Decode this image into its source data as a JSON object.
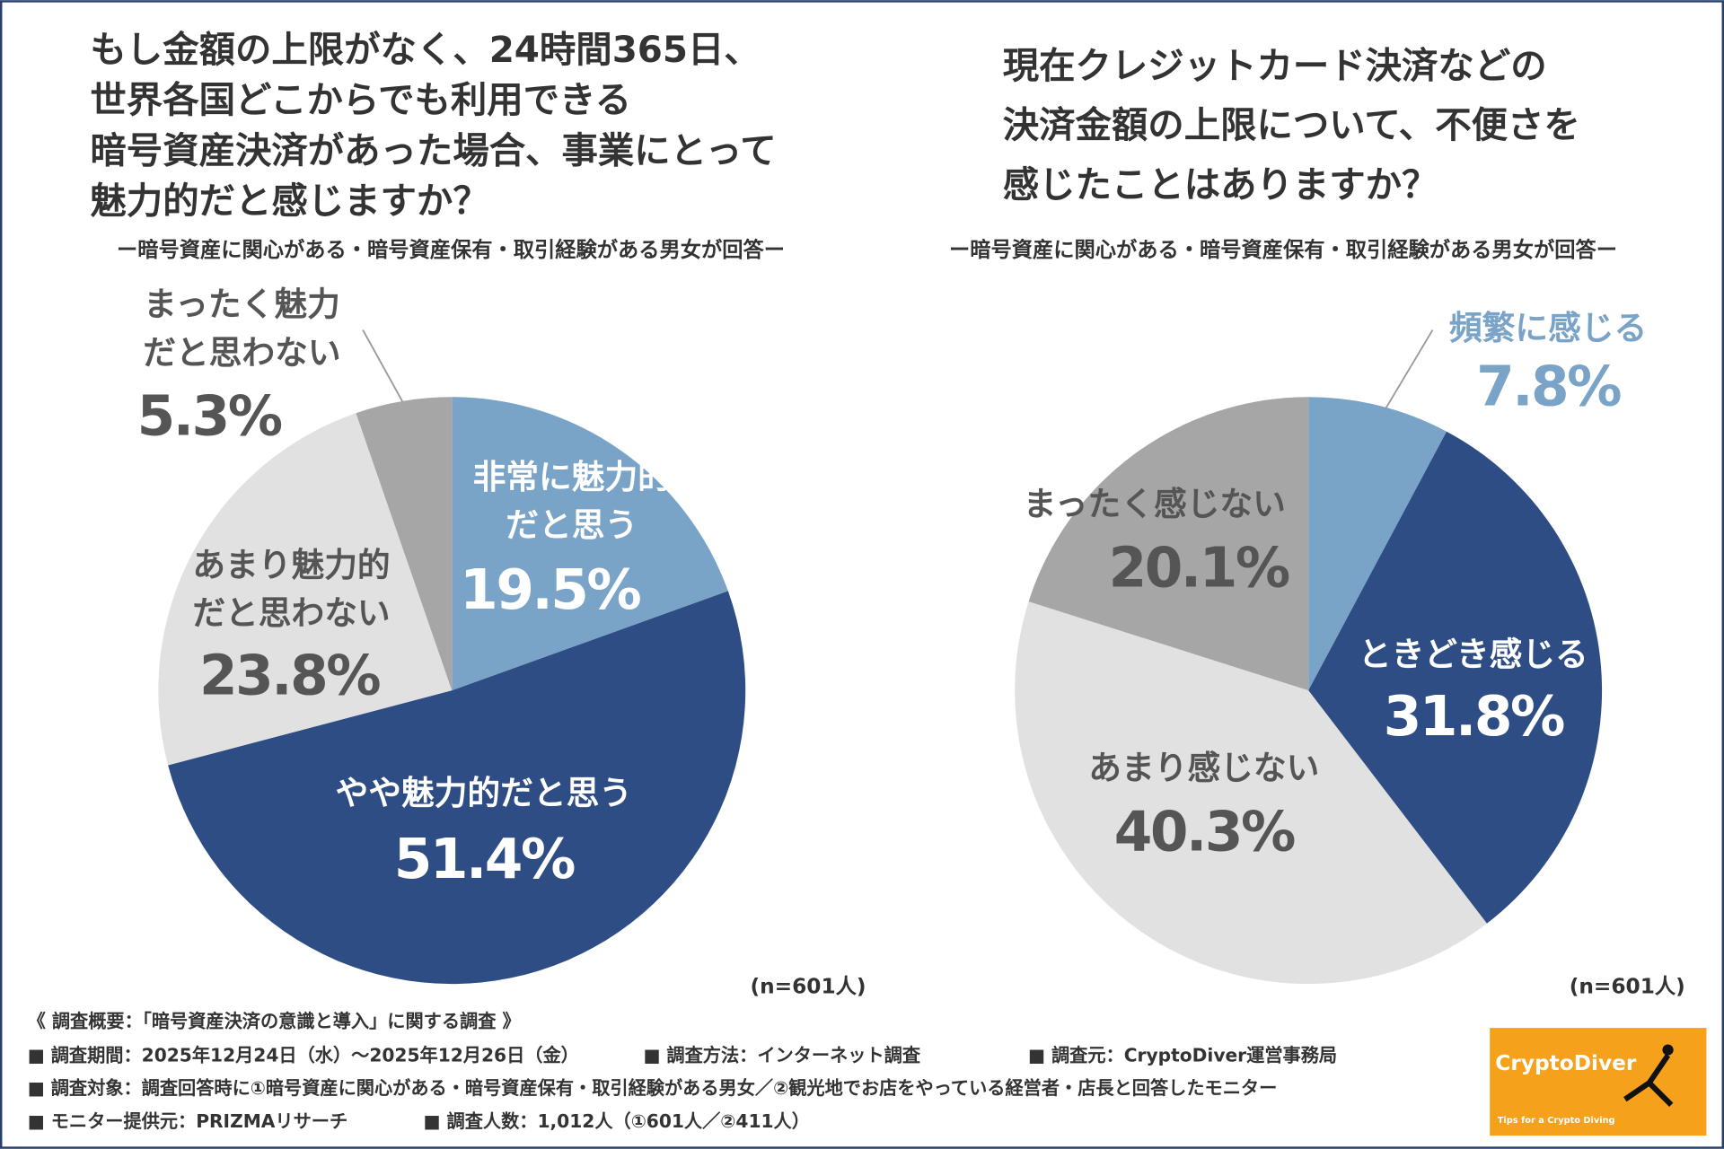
{
  "chart_data": [
    {
      "type": "pie",
      "title": [
        "もし金額の上限がなく、24時間365日、",
        "世界各国どこからでも利用できる",
        "暗号資産決済があった場合、事業にとって",
        "魅力的だと感じますか？"
      ],
      "subtitle": "ー暗号資産に関心がある・暗号資産保有・取引経験がある男女が回答ー",
      "note": "(n=601人)",
      "categories": [
        "非常に魅力的だと思う",
        "やや魅力的だと思う",
        "あまり魅力的だと思わない",
        "まったく魅力だと思わない"
      ],
      "values": [
        19.5,
        51.4,
        23.8,
        5.3
      ],
      "value_labels": [
        "19.5%",
        "51.4%",
        "23.8%",
        "5.3%"
      ],
      "colors": [
        "#7aa3c8",
        "#2e4d84",
        "#e1e1e1",
        "#a6a6a6"
      ]
    },
    {
      "type": "pie",
      "title": [
        "現在クレジットカード決済などの",
        "決済金額の上限について、不便さを",
        "感じたことはありますか？"
      ],
      "subtitle": "ー暗号資産に関心がある・暗号資産保有・取引経験がある男女が回答ー",
      "note": "(n=601人)",
      "categories": [
        "頻繁に感じる",
        "ときどき感じる",
        "あまり感じない",
        "まったく感じない"
      ],
      "values": [
        7.8,
        31.8,
        40.3,
        20.1
      ],
      "value_labels": [
        "7.8%",
        "31.8%",
        "40.3%",
        "20.1%"
      ],
      "colors": [
        "#7aa3c8",
        "#2e4d84",
        "#e1e1e1",
        "#a6a6a6"
      ]
    }
  ],
  "survey": {
    "heading": "《 調査概要：「暗号資産決済の意識と導入」に関する調査 》",
    "period": "■ 調査期間：2025年12月24日（水）～2025年12月26日（金）",
    "method": "■ 調査方法：インターネット調査",
    "source": "■ 調査元：CryptoDiver運営事務局",
    "target": "■ 調査対象：調査回答時に①暗号資産に関心がある・暗号資産保有・取引経験がある男女／②観光地でお店をやっている経営者・店長と回答したモニター",
    "provider": "■ モニター提供元：PRIZMAリサーチ",
    "count": "■ 調査人数：1,012人（①601人／②411人）"
  },
  "logo": {
    "name": "CryptoDiver",
    "tagline": "Tips for a Crypto Diving"
  }
}
